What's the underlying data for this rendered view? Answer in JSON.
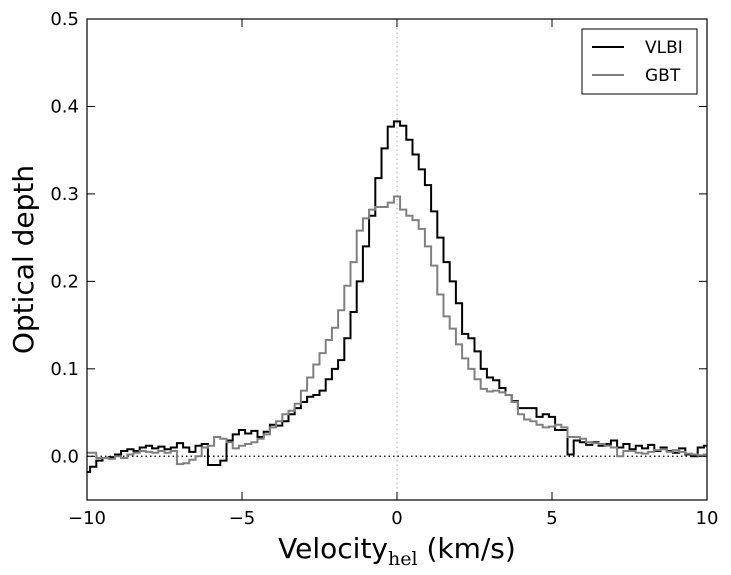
{
  "chart_data": {
    "type": "line",
    "title": "",
    "xlabel_main": "Velocity",
    "xlabel_sub": "hel",
    "xlabel_tail": " (km/s)",
    "ylabel": "Optical depth",
    "xlim": [
      -10,
      10
    ],
    "ylim": [
      -0.05,
      0.5
    ],
    "xticks": [
      -10,
      -5,
      0,
      5,
      10
    ],
    "xtick_labels": [
      "−10",
      "−5",
      "0",
      "5",
      "10"
    ],
    "yticks": [
      0.0,
      0.1,
      0.2,
      0.3,
      0.4,
      0.5
    ],
    "ytick_labels": [
      "0.0",
      "0.1",
      "0.2",
      "0.3",
      "0.4",
      "0.5"
    ],
    "zero_line": {
      "axis": "y",
      "value": 0,
      "style": "dotted"
    },
    "center_line": {
      "axis": "x",
      "value": 0,
      "style": "dotted"
    },
    "legend_position": "top-right",
    "series": [
      {
        "name": "VLBI",
        "color": "#000000",
        "step": "mid",
        "x": [
          -10.0,
          -9.8,
          -9.6,
          -9.4,
          -9.2,
          -9.0,
          -8.8,
          -8.6,
          -8.4,
          -8.2,
          -8.0,
          -7.8,
          -7.6,
          -7.4,
          -7.2,
          -7.0,
          -6.8,
          -6.6,
          -6.4,
          -6.2,
          -6.0,
          -5.8,
          -5.6,
          -5.4,
          -5.2,
          -5.0,
          -4.8,
          -4.6,
          -4.4,
          -4.2,
          -4.0,
          -3.8,
          -3.6,
          -3.4,
          -3.2,
          -3.0,
          -2.8,
          -2.6,
          -2.4,
          -2.2,
          -2.0,
          -1.8,
          -1.6,
          -1.4,
          -1.2,
          -1.0,
          -0.8,
          -0.6,
          -0.4,
          -0.2,
          0.0,
          0.2,
          0.4,
          0.6,
          0.8,
          1.0,
          1.2,
          1.4,
          1.6,
          1.8,
          2.0,
          2.2,
          2.4,
          2.6,
          2.8,
          3.0,
          3.2,
          3.4,
          3.6,
          3.8,
          4.0,
          4.2,
          4.4,
          4.6,
          4.8,
          5.0,
          5.2,
          5.4,
          5.6,
          5.8,
          6.0,
          6.2,
          6.4,
          6.6,
          6.8,
          7.0,
          7.2,
          7.4,
          7.6,
          7.8,
          8.0,
          8.2,
          8.4,
          8.6,
          8.8,
          9.0,
          9.2,
          9.4,
          9.6,
          9.8,
          10.0
        ],
        "values": [
          -0.018,
          -0.012,
          -0.005,
          -0.002,
          -0.001,
          0.002,
          0.006,
          0.008,
          0.006,
          0.01,
          0.012,
          0.009,
          0.011,
          0.008,
          0.01,
          0.015,
          0.01,
          0.005,
          0.012,
          0.014,
          -0.01,
          -0.01,
          -0.005,
          0.018,
          0.025,
          0.03,
          0.026,
          0.029,
          0.022,
          0.028,
          0.036,
          0.035,
          0.04,
          0.048,
          0.055,
          0.062,
          0.068,
          0.07,
          0.075,
          0.088,
          0.1,
          0.11,
          0.135,
          0.165,
          0.2,
          0.24,
          0.275,
          0.318,
          0.352,
          0.377,
          0.383,
          0.378,
          0.362,
          0.345,
          0.328,
          0.31,
          0.28,
          0.25,
          0.222,
          0.2,
          0.175,
          0.14,
          0.135,
          0.12,
          0.1,
          0.09,
          0.087,
          0.078,
          0.07,
          0.063,
          0.055,
          0.055,
          0.055,
          0.045,
          0.048,
          0.045,
          0.03,
          0.03,
          0.002,
          0.018,
          0.016,
          0.013,
          0.016,
          0.012,
          0.014,
          0.018,
          0.01,
          0.014,
          0.008,
          0.012,
          0.009,
          0.013,
          0.006,
          0.01,
          0.006,
          0.004,
          0.009,
          0.002,
          0.0,
          0.01,
          0.012
        ]
      },
      {
        "name": "GBT",
        "color": "#808080",
        "step": "mid",
        "x": [
          -10.0,
          -9.8,
          -9.6,
          -9.4,
          -9.2,
          -9.0,
          -8.8,
          -8.6,
          -8.4,
          -8.2,
          -8.0,
          -7.8,
          -7.6,
          -7.4,
          -7.2,
          -7.0,
          -6.8,
          -6.6,
          -6.4,
          -6.2,
          -6.0,
          -5.8,
          -5.6,
          -5.4,
          -5.2,
          -5.0,
          -4.8,
          -4.6,
          -4.4,
          -4.2,
          -4.0,
          -3.8,
          -3.6,
          -3.4,
          -3.2,
          -3.0,
          -2.8,
          -2.6,
          -2.4,
          -2.2,
          -2.0,
          -1.8,
          -1.6,
          -1.4,
          -1.2,
          -1.0,
          -0.8,
          -0.6,
          -0.4,
          -0.2,
          0.0,
          0.2,
          0.4,
          0.6,
          0.8,
          1.0,
          1.2,
          1.4,
          1.6,
          1.8,
          2.0,
          2.2,
          2.4,
          2.6,
          2.8,
          3.0,
          3.2,
          3.4,
          3.6,
          3.8,
          4.0,
          4.2,
          4.4,
          4.6,
          4.8,
          5.0,
          5.2,
          5.4,
          5.6,
          5.8,
          6.0,
          6.2,
          6.4,
          6.6,
          6.8,
          7.0,
          7.2,
          7.4,
          7.6,
          7.8,
          8.0,
          8.2,
          8.4,
          8.6,
          8.8,
          9.0,
          9.2,
          9.4,
          9.6,
          9.8,
          10.0
        ],
        "values": [
          0.004,
          0.004,
          -0.002,
          -0.002,
          -0.003,
          0.0,
          -0.002,
          0.002,
          0.004,
          0.006,
          0.005,
          0.004,
          0.006,
          0.004,
          0.006,
          -0.009,
          -0.008,
          -0.004,
          0.0,
          0.01,
          0.012,
          0.022,
          0.02,
          0.016,
          0.009,
          0.012,
          0.014,
          0.016,
          0.02,
          0.025,
          0.033,
          0.04,
          0.048,
          0.052,
          0.06,
          0.075,
          0.09,
          0.105,
          0.118,
          0.133,
          0.147,
          0.167,
          0.195,
          0.222,
          0.258,
          0.272,
          0.282,
          0.285,
          0.285,
          0.29,
          0.297,
          0.282,
          0.275,
          0.27,
          0.26,
          0.24,
          0.218,
          0.185,
          0.16,
          0.146,
          0.128,
          0.112,
          0.1,
          0.088,
          0.077,
          0.074,
          0.075,
          0.073,
          0.07,
          0.062,
          0.048,
          0.042,
          0.04,
          0.036,
          0.033,
          0.034,
          0.036,
          0.033,
          0.022,
          0.022,
          0.02,
          0.016,
          0.015,
          0.014,
          0.012,
          0.01,
          0.0,
          0.006,
          0.006,
          0.004,
          0.003,
          0.005,
          0.007,
          0.008,
          0.005,
          0.007,
          0.005,
          0.003,
          0.002,
          0.001,
          0.002
        ]
      }
    ]
  }
}
